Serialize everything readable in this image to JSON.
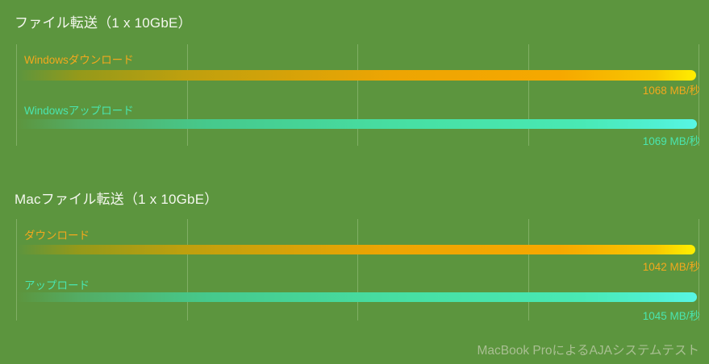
{
  "page": {
    "background_color": "#5c953e",
    "footer": "MacBook ProによるAJAシステムテスト"
  },
  "colors": {
    "title": "#f4f7ee",
    "download": "#f3a81d",
    "upload": "#4ae5af",
    "footer_text": "#a9bf92",
    "gridline": "rgba(214,234,192,0.30)"
  },
  "chart_data": [
    {
      "type": "bar",
      "orientation": "horizontal",
      "title": "ファイル転送（1 x 10GbE）",
      "categories": [
        "Windowsダウンロード",
        "Windowsアップロード"
      ],
      "values": [
        1068,
        1069
      ],
      "value_labels": [
        "1068 MB/秒",
        "1069 MB/秒"
      ],
      "bar_colors": [
        "#f6a800",
        "#49e5ad"
      ],
      "unit": "MB/秒",
      "xlim": [
        0,
        1069
      ],
      "grid": true,
      "gridline_count": 5,
      "legend": false
    },
    {
      "type": "bar",
      "orientation": "horizontal",
      "title": "Macファイル転送（1 x 10GbE）",
      "categories": [
        "ダウンロード",
        "アップロード"
      ],
      "values": [
        1042,
        1045
      ],
      "value_labels": [
        "1042 MB/秒",
        "1045 MB/秒"
      ],
      "bar_colors": [
        "#f6a800",
        "#49e5ad"
      ],
      "unit": "MB/秒",
      "xlim": [
        0,
        1045
      ],
      "grid": true,
      "gridline_count": 5,
      "legend": false
    }
  ]
}
